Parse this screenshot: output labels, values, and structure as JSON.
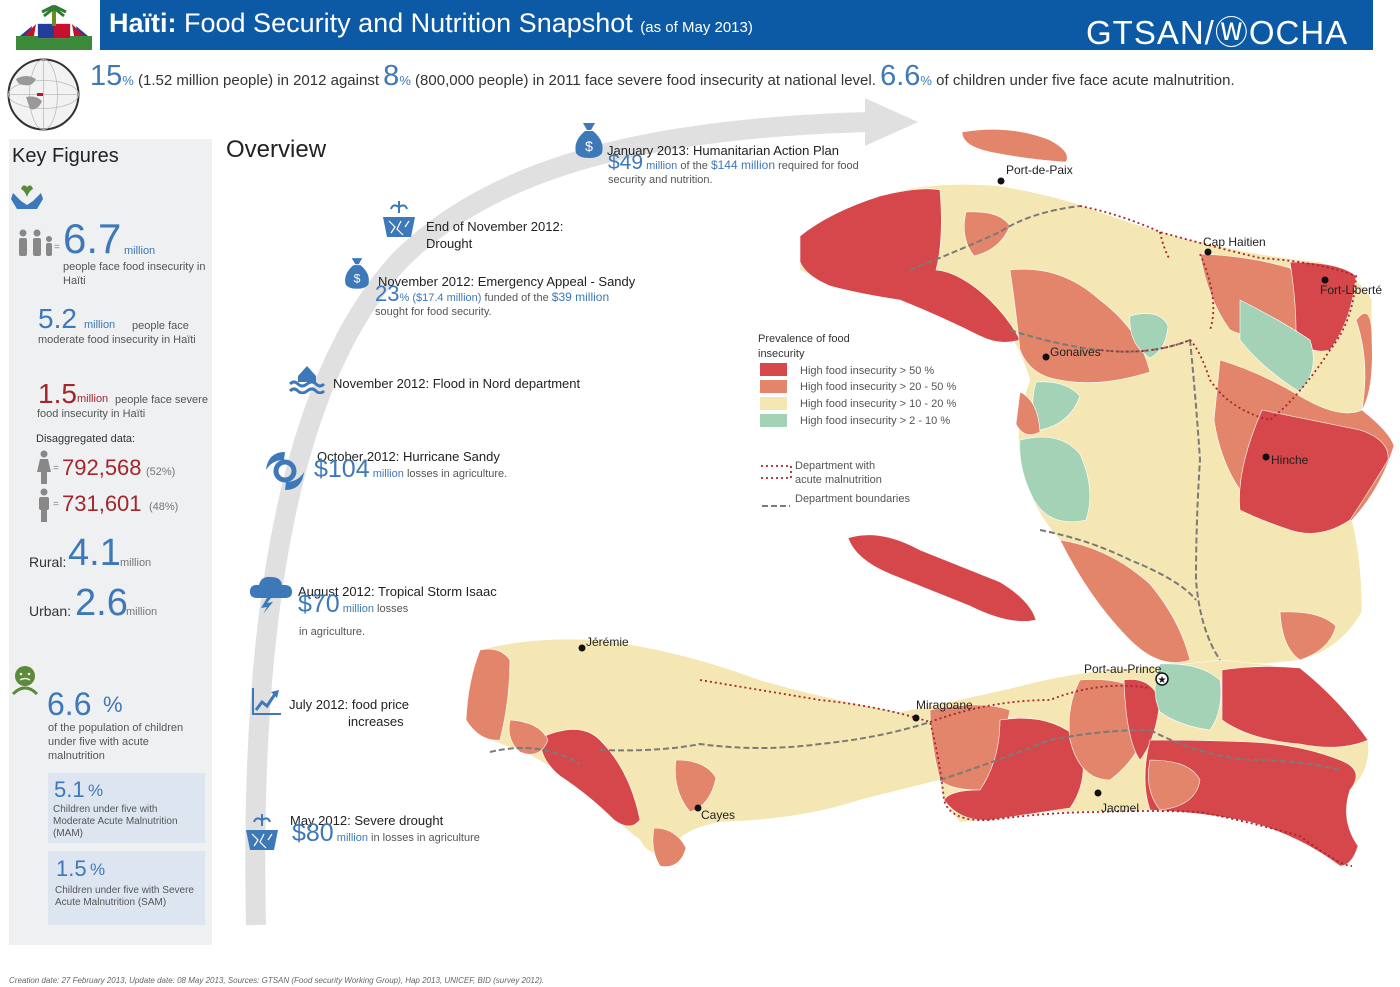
{
  "header": {
    "title_bold": "Haïti:",
    "title_rest": "Food Security and Nutrition Snapshot",
    "as_of": "(as of May 2013)",
    "brand": "GTSAN/ⓌOCHA"
  },
  "headline": {
    "p1": "15",
    "p1_unit": "%",
    "t1": "(1.52 million people) in 2012 against",
    "p2": "8",
    "p2_unit": "%",
    "t2": "(800,000 people) in 2011 face severe food insecurity at national level.",
    "p3": "6.6",
    "p3_unit": "%",
    "t3": "of children under five face acute malnutrition."
  },
  "key_figures": {
    "title": "Key Figures",
    "total_value": "6.7",
    "total_unit": "million",
    "total_text": "people face food insecurity in Haïti",
    "moderate_value": "5.2",
    "moderate_unit": "million",
    "moderate_text_1": "people face",
    "moderate_text_2": "moderate food insecurity in Haïti",
    "severe_value": "1.5",
    "severe_unit": "million",
    "severe_text_1": "people face severe",
    "severe_text_2": "food insecurity in Haïti",
    "disagg_label": "Disaggregated data:",
    "female_value": "792,568",
    "female_pct": "(52%)",
    "male_value": "731,601",
    "male_pct": "(48%)",
    "rural_label": "Rural:",
    "rural_value": "4.1",
    "rural_unit": "million",
    "urban_label": "Urban:",
    "urban_value": "2.6",
    "urban_unit": "million",
    "child_value": "6.6",
    "child_unit": "%",
    "child_text": "of the population of children under five with acute malnutrition",
    "mam_value": "5.1",
    "mam_unit": "%",
    "mam_text": "Children under five with Moderate Acute Malnutrition (MAM)",
    "sam_value": "1.5",
    "sam_unit": "%",
    "sam_text": "Children under five with Severe Acute Malnutrition (SAM)"
  },
  "overview": {
    "title": "Overview",
    "events": [
      {
        "title": "January 2013: Humanitarian Action Plan",
        "amount": "$49",
        "unit": "million",
        "pre": "of the",
        "amount2": "$144 million",
        "rest": "required for food security and nutrition."
      },
      {
        "title": "End of  November 2012:",
        "title2": "Drought"
      },
      {
        "title": "November 2012: Emergency Appeal - Sandy",
        "amount": "23",
        "unit": "%",
        "detail": "($17.4 million)",
        "pre": "funded of the",
        "amount2": "$39 million",
        "rest": "sought for food security."
      },
      {
        "title": "November 2012: Flood in Nord department"
      },
      {
        "title": "October 2012: Hurricane Sandy",
        "amount": "$104",
        "unit": "million",
        "rest": "losses in agriculture."
      },
      {
        "title": "August 2012: Tropical Storm Isaac",
        "amount": "$70",
        "unit": "million",
        "rest": "losses",
        "rest2": "in agriculture."
      },
      {
        "title": "July 2012: food price",
        "title2": "increases"
      },
      {
        "title": "May 2012: Severe drought",
        "amount": "$80",
        "unit": "million",
        "rest": "in losses in agriculture"
      }
    ]
  },
  "legend": {
    "title": "Prevalence of food insecurity",
    "items": [
      {
        "label": "High food insecurity > 50 %",
        "color": "#d5474a"
      },
      {
        "label": "High food insecurity > 20 - 50 %",
        "color": "#e2856a"
      },
      {
        "label": "High food insecurity > 10 - 20 %",
        "color": "#f5e7b3"
      },
      {
        "label": "High food insecurity >   2 - 10 %",
        "color": "#a3d2b7"
      }
    ],
    "malnutrition": "Department with acute malnutrition",
    "boundaries": "Department boundaries"
  },
  "cities": {
    "port_de_paix": "Port-de-Paix",
    "cap_haitien": "Cap Haitien",
    "fort_liberte": "Fort-Liberté",
    "gonaives": "Gonaives",
    "hinche": "Hinche",
    "jeremie": "Jérémie",
    "miragoane": "Miragoane",
    "port_au_prince": "Port-au-Prince",
    "cayes": "Cayes",
    "jacmel": "Jacmel"
  },
  "footer": "Creation date: 27 February 2013, Update date: 08 May 2013, Sources: GTSAN (Food security Working Group), Hap 2013, UNICEF, BID (survey 2012)."
}
